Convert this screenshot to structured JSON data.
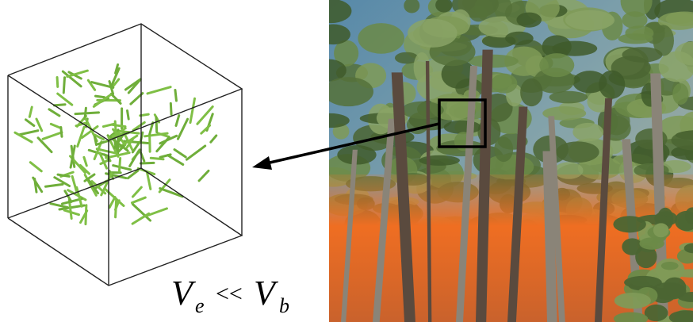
{
  "formula": {
    "left": "V",
    "left_sub": "e",
    "relation": "<<",
    "right": "V",
    "right_sub": "b"
  }
}
